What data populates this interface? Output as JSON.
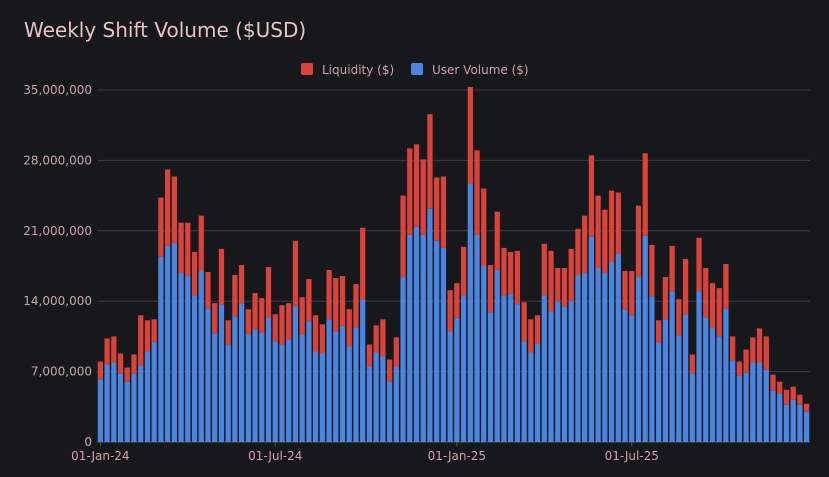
{
  "chart_data": {
    "type": "bar",
    "stacked": true,
    "title": "Weekly Shift Volume ($USD)",
    "ylim": [
      0,
      35000000
    ],
    "y_ticks": [
      0,
      7000000,
      14000000,
      21000000,
      28000000,
      35000000
    ],
    "y_tick_labels": [
      "0",
      "7,000,000",
      "14,000,000",
      "21,000,000",
      "28,000,000",
      "35,000,000"
    ],
    "x_tick_labels": [
      "01-Jan-24",
      "01-Jul-24",
      "01-Jan-25",
      "01-Jul-25"
    ],
    "x_tick_index": [
      0,
      26,
      53,
      79
    ],
    "legend_position": "top",
    "grid": true,
    "colors": {
      "Liquidity ($)": "#d9443a",
      "User Volume ($)": "#4a86e0"
    },
    "series": [
      {
        "name": "User Volume ($)",
        "values": [
          6200000,
          7700000,
          7900000,
          6800000,
          6000000,
          6800000,
          7600000,
          9000000,
          9900000,
          18400000,
          19500000,
          19800000,
          16800000,
          16500000,
          14600000,
          17000000,
          13300000,
          10800000,
          13700000,
          9700000,
          12500000,
          13800000,
          10700000,
          11200000,
          10900000,
          12400000,
          10000000,
          9700000,
          10200000,
          13500000,
          10700000,
          12000000,
          9000000,
          8800000,
          12200000,
          11000000,
          11500000,
          9500000,
          11400000,
          14200000,
          7500000,
          8900000,
          8500000,
          6000000,
          7500000,
          16400000,
          20600000,
          21400000,
          20600000,
          23200000,
          20000000,
          19300000,
          11000000,
          12300000,
          14600000,
          25700000,
          20600000,
          17500000,
          12900000,
          17100000,
          14600000,
          14700000,
          13700000,
          10000000,
          8900000,
          9800000,
          14600000,
          13000000,
          14000000,
          13500000,
          14000000,
          16600000,
          16800000,
          20400000,
          17300000,
          16800000,
          17900000,
          18700000,
          13200000,
          12600000,
          16400000,
          20500000,
          14500000,
          9900000,
          12200000,
          15000000,
          10600000,
          12700000,
          6800000,
          15000000,
          12400000,
          11400000,
          10500000,
          13300000,
          8100000,
          6600000,
          6900000,
          7900000,
          7900000,
          7200000,
          5100000,
          4800000,
          3700000,
          4200000,
          3700000,
          3000000
        ]
      },
      {
        "name": "Liquidity ($)",
        "values": [
          1800000,
          2600000,
          2600000,
          2000000,
          1400000,
          1900000,
          5000000,
          3100000,
          2300000,
          5900000,
          7600000,
          6600000,
          5000000,
          5300000,
          4300000,
          5500000,
          3600000,
          3000000,
          5500000,
          2400000,
          4100000,
          3800000,
          2500000,
          3600000,
          3400000,
          5000000,
          2700000,
          3900000,
          3600000,
          6500000,
          3700000,
          4200000,
          3600000,
          2900000,
          4900000,
          5300000,
          5000000,
          3700000,
          4300000,
          7100000,
          2200000,
          2700000,
          3700000,
          2200000,
          2900000,
          8100000,
          8600000,
          8200000,
          7500000,
          9400000,
          6300000,
          7100000,
          4100000,
          3500000,
          4800000,
          9600000,
          8400000,
          7700000,
          4700000,
          5800000,
          4700000,
          4200000,
          5300000,
          3900000,
          3300000,
          2800000,
          5100000,
          6000000,
          3300000,
          3800000,
          5200000,
          4600000,
          5700000,
          8100000,
          7200000,
          6300000,
          7100000,
          6100000,
          3800000,
          4400000,
          7100000,
          8200000,
          5100000,
          2200000,
          4200000,
          4500000,
          3600000,
          5500000,
          1900000,
          5300000,
          4900000,
          4400000,
          4800000,
          4400000,
          2400000,
          1400000,
          2300000,
          2500000,
          3400000,
          3300000,
          1600000,
          1200000,
          1500000,
          1300000,
          1000000,
          800000
        ]
      }
    ]
  }
}
